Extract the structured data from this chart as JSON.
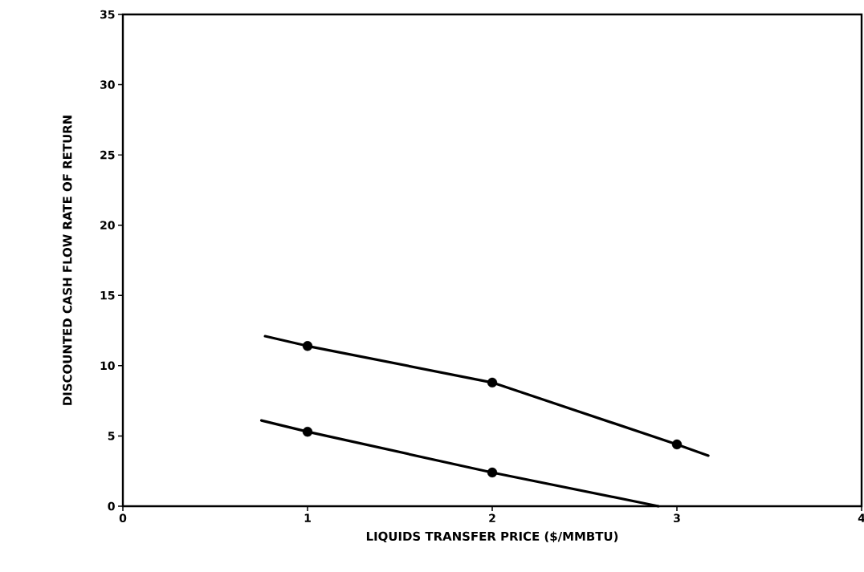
{
  "chart_data": {
    "type": "line",
    "xlabel": "LIQUIDS TRANSFER PRICE ($/MMBTU)",
    "ylabel": "DISCOUNTED CASH FLOW RATE OF RETURN",
    "series": [
      {
        "marker": "none",
        "color": "#000000",
        "x": [
          0.77,
          1,
          2,
          3,
          3.17
        ],
        "values": [
          12.1,
          11.4,
          8.8,
          4.4,
          3.6
        ]
      },
      {
        "marker": "none",
        "color": "#000000",
        "x": [
          0.75,
          1,
          2,
          2.9
        ],
        "values": [
          6.1,
          5.3,
          2.4,
          0
        ]
      },
      {
        "type": "scatter",
        "marker": "circle",
        "color": "#000000",
        "x": [
          1,
          2,
          3
        ],
        "values": [
          11.4,
          8.8,
          4.4
        ]
      },
      {
        "type": "scatter",
        "marker": "circle",
        "color": "#000000",
        "x": [
          1,
          2
        ],
        "values": [
          5.3,
          2.4
        ]
      }
    ],
    "line_style": "solid",
    "xlim": [
      0,
      4
    ],
    "xticks": [
      0,
      1,
      2,
      3,
      4
    ],
    "ylim": [
      0,
      35
    ],
    "yticks": [
      0,
      5,
      10,
      15,
      20,
      25,
      30,
      35
    ]
  }
}
